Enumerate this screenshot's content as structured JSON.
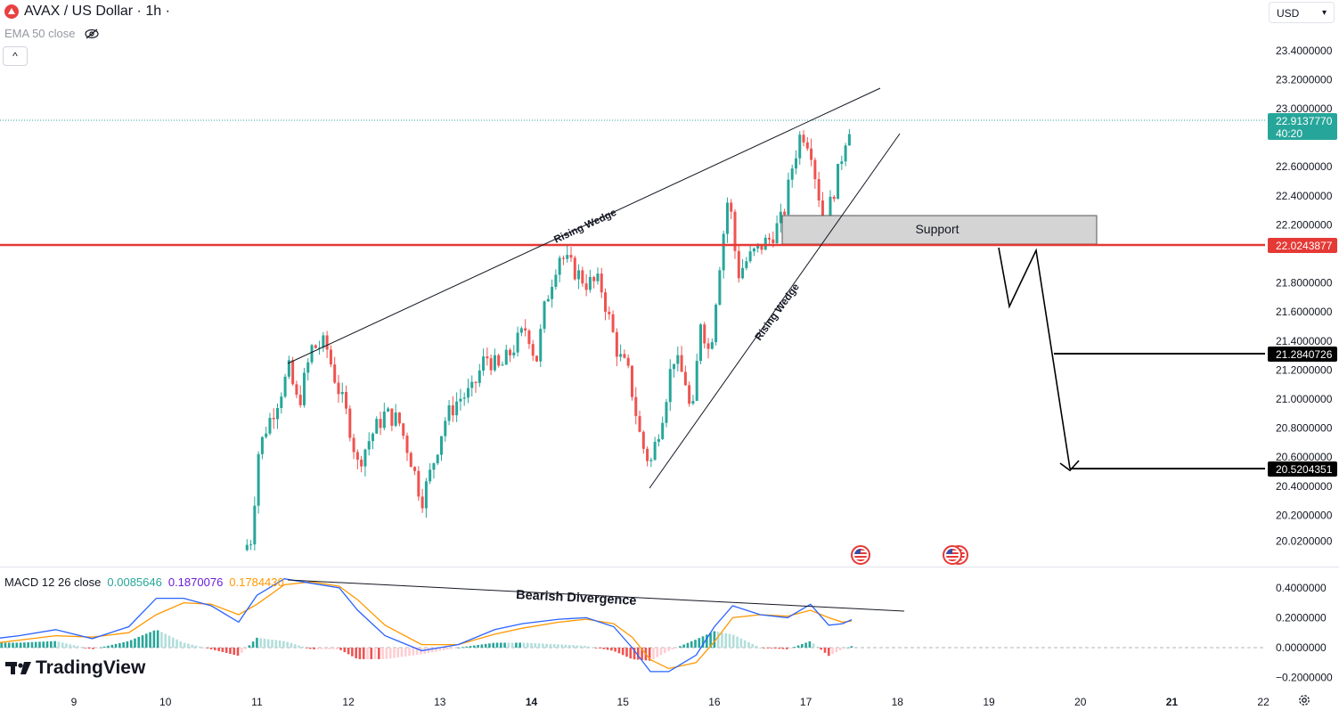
{
  "header": {
    "symbol_title": "AVAX / US Dollar · 1h ·",
    "indicator_label": "EMA 50 close",
    "collapse_glyph": "^",
    "currency": "USD"
  },
  "macd": {
    "label": "MACD 12 26 close",
    "value_hist": "0.0085646",
    "value_macd": "0.1870076",
    "value_signal": "0.1784430",
    "colors": {
      "hist": "#26a69a",
      "macd": "#2962ff",
      "signal": "#ff9800"
    }
  },
  "annotations": {
    "wedge_label_upper": "Rising Wedge",
    "wedge_label_lower": "Rising Wedge",
    "support_label": "Support",
    "divergence_label": "Bearish Divergence"
  },
  "branding": {
    "logo_text": "TradingView"
  },
  "icons": {
    "settings": "gear-icon",
    "visibility": "eye-off-icon",
    "flags": "us-flag-icon"
  },
  "colors": {
    "up": "#26a69a",
    "down": "#ef5350",
    "support_line": "#e53935",
    "price_tag": "#26a69a"
  },
  "chart_data": {
    "type": "candlestick",
    "price_axis": {
      "ticks": [
        "23.4000000",
        "23.2000000",
        "23.0000000",
        "22.6000000",
        "22.4000000",
        "22.2000000",
        "21.8000000",
        "21.6000000",
        "21.4000000",
        "21.2000000",
        "21.0000000",
        "20.8000000",
        "20.6000000",
        "20.4000000",
        "20.2000000",
        "20.0200000"
      ],
      "ylim": [
        19.95,
        23.55
      ]
    },
    "time_axis": {
      "ticks": [
        "9",
        "10",
        "11",
        "12",
        "13",
        "14",
        "15",
        "16",
        "17",
        "18",
        "19",
        "20",
        "21",
        "22"
      ],
      "bold_ticks": [
        "14",
        "21"
      ]
    },
    "current_price": {
      "value": "22.9137770",
      "countdown": "40:20"
    },
    "levels": [
      {
        "name": "support_line",
        "value": "22.0243877",
        "color": "#e53935"
      },
      {
        "name": "target_1",
        "value": "21.2840726",
        "color": "#000000"
      },
      {
        "name": "target_2",
        "value": "20.5204351",
        "color": "#000000"
      }
    ],
    "support_zone": [
      22.02,
      22.22
    ],
    "macd_axis": {
      "ticks": [
        "0.4000000",
        "0.2000000",
        "0.0000000",
        "−0.2000000"
      ],
      "ylim": [
        -0.23,
        0.48
      ]
    },
    "price_path": [
      [
        10.85,
        19.96
      ],
      [
        10.95,
        20.05
      ],
      [
        11.0,
        20.6
      ],
      [
        11.1,
        20.8
      ],
      [
        11.2,
        20.95
      ],
      [
        11.35,
        21.2
      ],
      [
        11.45,
        20.95
      ],
      [
        11.6,
        21.35
      ],
      [
        11.75,
        21.38
      ],
      [
        11.85,
        21.15
      ],
      [
        12.0,
        20.85
      ],
      [
        12.1,
        20.55
      ],
      [
        12.25,
        20.75
      ],
      [
        12.4,
        20.9
      ],
      [
        12.55,
        20.85
      ],
      [
        12.7,
        20.55
      ],
      [
        12.8,
        20.3
      ],
      [
        12.9,
        20.5
      ],
      [
        13.05,
        20.85
      ],
      [
        13.2,
        21.0
      ],
      [
        13.35,
        21.05
      ],
      [
        13.5,
        21.3
      ],
      [
        13.65,
        21.2
      ],
      [
        13.8,
        21.35
      ],
      [
        13.95,
        21.5
      ],
      [
        14.05,
        21.25
      ],
      [
        14.15,
        21.65
      ],
      [
        14.3,
        22.0
      ],
      [
        14.45,
        21.9
      ],
      [
        14.6,
        21.8
      ],
      [
        14.75,
        21.8
      ],
      [
        14.85,
        21.55
      ],
      [
        14.95,
        21.3
      ],
      [
        15.05,
        21.2
      ],
      [
        15.1,
        21.05
      ],
      [
        15.2,
        20.7
      ],
      [
        15.3,
        20.55
      ],
      [
        15.45,
        20.95
      ],
      [
        15.55,
        21.3
      ],
      [
        15.7,
        21.1
      ],
      [
        15.75,
        20.8
      ],
      [
        15.85,
        21.55
      ],
      [
        15.95,
        21.3
      ],
      [
        16.05,
        21.9
      ],
      [
        16.15,
        22.4
      ],
      [
        16.2,
        22.2
      ],
      [
        16.25,
        21.85
      ],
      [
        16.35,
        21.95
      ],
      [
        16.5,
        22.05
      ],
      [
        16.6,
        22.1
      ],
      [
        16.75,
        22.25
      ],
      [
        16.85,
        22.6
      ],
      [
        16.95,
        22.85
      ],
      [
        17.05,
        22.75
      ],
      [
        17.1,
        22.55
      ],
      [
        17.2,
        22.2
      ],
      [
        17.25,
        22.3
      ],
      [
        17.35,
        22.55
      ],
      [
        17.45,
        22.85
      ],
      [
        17.5,
        22.9137
      ]
    ],
    "macd_line": [
      [
        8.0,
        0.05
      ],
      [
        8.4,
        0.08
      ],
      [
        8.8,
        0.12
      ],
      [
        9.2,
        0.06
      ],
      [
        9.6,
        0.14
      ],
      [
        9.9,
        0.33
      ],
      [
        10.2,
        0.33
      ],
      [
        10.5,
        0.28
      ],
      [
        10.8,
        0.17
      ],
      [
        11.0,
        0.35
      ],
      [
        11.3,
        0.46
      ],
      [
        11.6,
        0.43
      ],
      [
        11.9,
        0.4
      ],
      [
        12.1,
        0.25
      ],
      [
        12.4,
        0.08
      ],
      [
        12.8,
        -0.02
      ],
      [
        13.2,
        0.02
      ],
      [
        13.6,
        0.12
      ],
      [
        13.9,
        0.16
      ],
      [
        14.3,
        0.19
      ],
      [
        14.6,
        0.2
      ],
      [
        14.9,
        0.14
      ],
      [
        15.1,
        0.0
      ],
      [
        15.3,
        -0.16
      ],
      [
        15.5,
        -0.16
      ],
      [
        15.8,
        -0.05
      ],
      [
        16.0,
        0.14
      ],
      [
        16.2,
        0.28
      ],
      [
        16.5,
        0.22
      ],
      [
        16.8,
        0.2
      ],
      [
        17.05,
        0.29
      ],
      [
        17.25,
        0.15
      ],
      [
        17.4,
        0.16
      ],
      [
        17.5,
        0.187
      ]
    ],
    "signal_line": [
      [
        8.0,
        0.02
      ],
      [
        8.4,
        0.05
      ],
      [
        8.8,
        0.08
      ],
      [
        9.2,
        0.07
      ],
      [
        9.6,
        0.1
      ],
      [
        9.9,
        0.22
      ],
      [
        10.2,
        0.3
      ],
      [
        10.5,
        0.29
      ],
      [
        10.8,
        0.22
      ],
      [
        11.0,
        0.29
      ],
      [
        11.3,
        0.42
      ],
      [
        11.6,
        0.44
      ],
      [
        11.9,
        0.41
      ],
      [
        12.1,
        0.32
      ],
      [
        12.4,
        0.15
      ],
      [
        12.8,
        0.02
      ],
      [
        13.2,
        0.02
      ],
      [
        13.6,
        0.09
      ],
      [
        13.9,
        0.13
      ],
      [
        14.3,
        0.17
      ],
      [
        14.6,
        0.19
      ],
      [
        14.9,
        0.16
      ],
      [
        15.1,
        0.07
      ],
      [
        15.3,
        -0.08
      ],
      [
        15.5,
        -0.14
      ],
      [
        15.8,
        -0.1
      ],
      [
        16.0,
        0.04
      ],
      [
        16.2,
        0.2
      ],
      [
        16.5,
        0.22
      ],
      [
        16.8,
        0.21
      ],
      [
        17.05,
        0.25
      ],
      [
        17.25,
        0.2
      ],
      [
        17.4,
        0.17
      ],
      [
        17.5,
        0.178
      ]
    ]
  }
}
